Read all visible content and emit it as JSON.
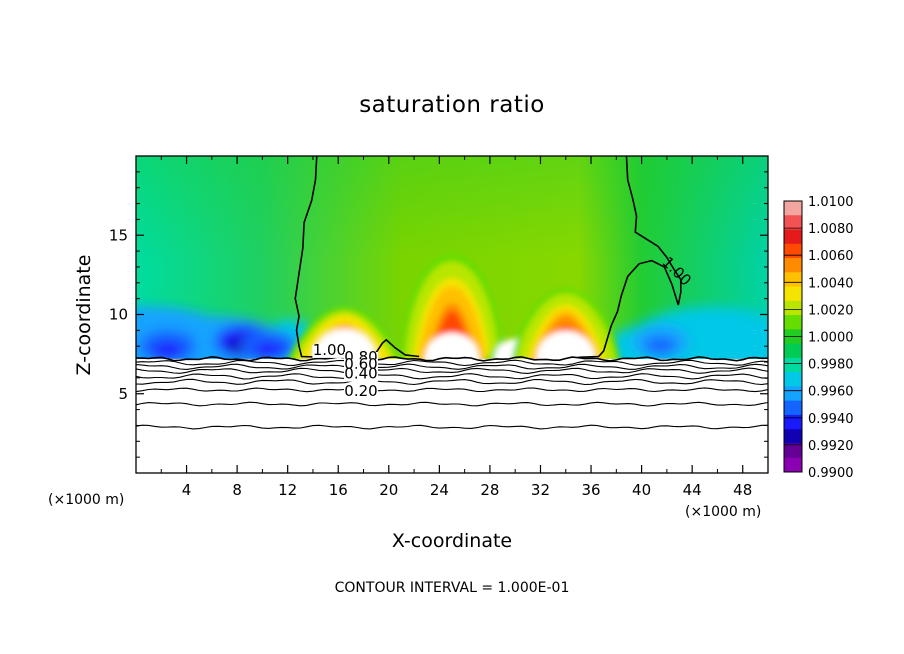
{
  "chart_data": {
    "type": "heatmap",
    "title": "saturation ratio",
    "xlabel": "X-coordinate",
    "ylabel": "Z-coordinate",
    "x_unit_left": "(×1000 m)",
    "x_unit_right": "(×1000 m)",
    "xlim": [
      0,
      50
    ],
    "ylim": [
      0,
      20
    ],
    "x_ticks": [
      4,
      8,
      12,
      16,
      20,
      24,
      28,
      32,
      36,
      40,
      44,
      48
    ],
    "y_ticks": [
      5,
      10,
      15
    ],
    "colorbar": {
      "min": 0.99,
      "max": 1.01,
      "labels": [
        "1.0100",
        "1.0080",
        "1.0060",
        "1.0040",
        "1.0020",
        "1.0000",
        "0.9980",
        "0.9960",
        "0.9940",
        "0.9920",
        "0.9900"
      ],
      "levels_top_to_bottom": [
        "#f3a6a0",
        "#f25252",
        "#e51a1a",
        "#ff4a00",
        "#ff8c00",
        "#ffc000",
        "#f5e400",
        "#b8e600",
        "#66dd00",
        "#22cc22",
        "#00cc55",
        "#00d9a0",
        "#00c8e6",
        "#14a3ff",
        "#1464ff",
        "#1a1aff",
        "#1200b3",
        "#640096",
        "#8c00b4"
      ]
    },
    "contour_labels": [
      "1.00",
      "1.00",
      "0.80",
      "0.60",
      "0.40",
      "0.20"
    ],
    "contour_interval_text": "CONTOUR INTERVAL = 1.000E-01",
    "cloud_base_z": 7.2,
    "field": {
      "background_mid": 0.9995,
      "maxima": [
        {
          "x": 16.5,
          "z_peak": 9.0,
          "value": 1.0075
        },
        {
          "x": 25.0,
          "z_peak": 11.0,
          "value": 1.0065
        },
        {
          "x": 30.0,
          "z_peak": 7.8,
          "value": 1.005
        },
        {
          "x": 34.0,
          "z_peak": 9.7,
          "value": 1.007
        }
      ],
      "minima": [
        {
          "x": 8.5,
          "z": 8.3,
          "value": 0.9925
        },
        {
          "x": 2.5,
          "z": 8.0,
          "value": 0.9935
        },
        {
          "x": 10.5,
          "z": 8.0,
          "value": 0.9935
        },
        {
          "x": 41.5,
          "z": 8.3,
          "value": 0.9945
        }
      ]
    },
    "grid": false
  }
}
